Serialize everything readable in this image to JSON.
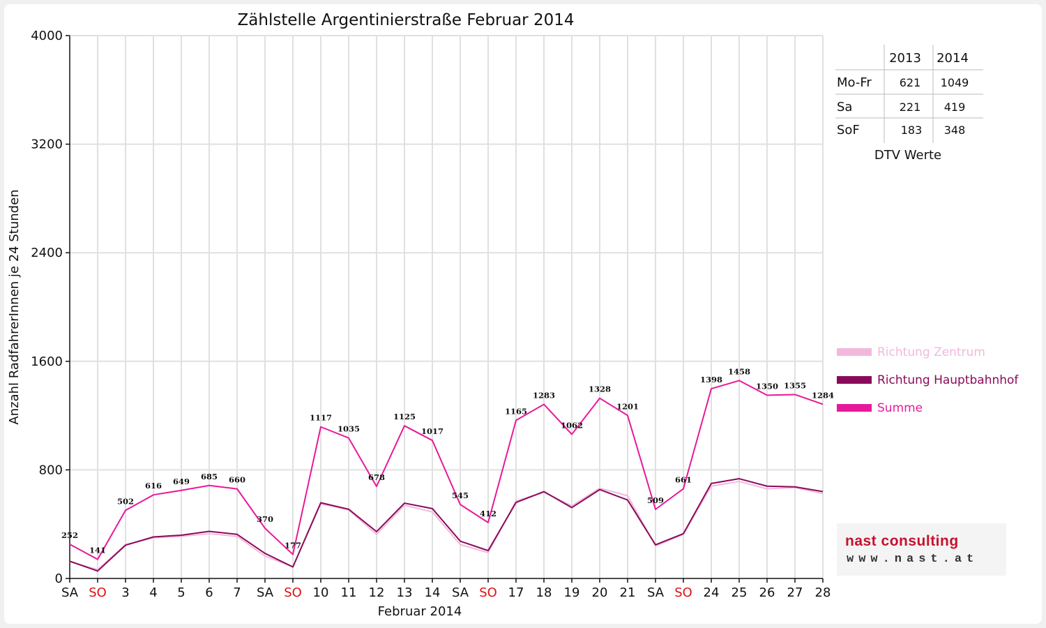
{
  "colors": {
    "zentrum": "#f2b8dc",
    "hauptbahnhof": "#8a0a5a",
    "summe": "#e8189a",
    "grid": "#e0e0e0",
    "weekend_label": "#e01010"
  },
  "chart_data": {
    "type": "line",
    "title": "Zählstelle Argentinierstraße Februar 2014",
    "xlabel": "Februar 2014",
    "ylabel": "Anzahl RadfahrerInnen je 24 Stunden",
    "ylim": [
      0,
      4000
    ],
    "yticks": [
      "0",
      "800",
      "1600",
      "2400",
      "3200",
      "4000"
    ],
    "grid": true,
    "legend_position": "right",
    "categories": [
      "SA",
      "SO",
      "3",
      "4",
      "5",
      "6",
      "7",
      "SA",
      "SO",
      "10",
      "11",
      "12",
      "13",
      "14",
      "SA",
      "SO",
      "17",
      "18",
      "19",
      "20",
      "21",
      "SA",
      "SO",
      "24",
      "25",
      "26",
      "27",
      "28"
    ],
    "weekend_indices": [
      1,
      8,
      15,
      22
    ],
    "series": [
      {
        "name": "Richtung Zentrum",
        "color_key": "zentrum",
        "values": [
          125,
          65,
          250,
          300,
          310,
          330,
          310,
          165,
          85,
          550,
          505,
          325,
          540,
          490,
          250,
          190,
          570,
          635,
          535,
          665,
          610,
          240,
          325,
          680,
          715,
          660,
          670,
          625
        ]
      },
      {
        "name": "Richtung Hauptbahnhof",
        "color_key": "hauptbahnhof",
        "values": [
          127,
          55,
          245,
          306,
          319,
          347,
          325,
          185,
          85,
          558,
          510,
          345,
          555,
          515,
          275,
          205,
          560,
          640,
          522,
          655,
          578,
          248,
          330,
          700,
          735,
          680,
          675,
          640
        ]
      },
      {
        "name": "Summe",
        "color_key": "summe",
        "values": [
          252,
          141,
          502,
          616,
          649,
          685,
          660,
          370,
          177,
          1117,
          1035,
          678,
          1125,
          1017,
          545,
          412,
          1165,
          1283,
          1062,
          1328,
          1201,
          509,
          661,
          1398,
          1458,
          1350,
          1355,
          1284
        ]
      }
    ]
  },
  "dtv_table": {
    "caption": "DTV Werte",
    "headers": [
      "2013",
      "2014"
    ],
    "rows": [
      {
        "label": "Mo-Fr",
        "v2013": "621",
        "v2014": "1049"
      },
      {
        "label": "Sa",
        "v2013": "221",
        "v2014": "419"
      },
      {
        "label": "SoF",
        "v2013": "183",
        "v2014": "348"
      }
    ]
  },
  "logo": {
    "name": "nast consulting",
    "url": "www.nast.at"
  }
}
